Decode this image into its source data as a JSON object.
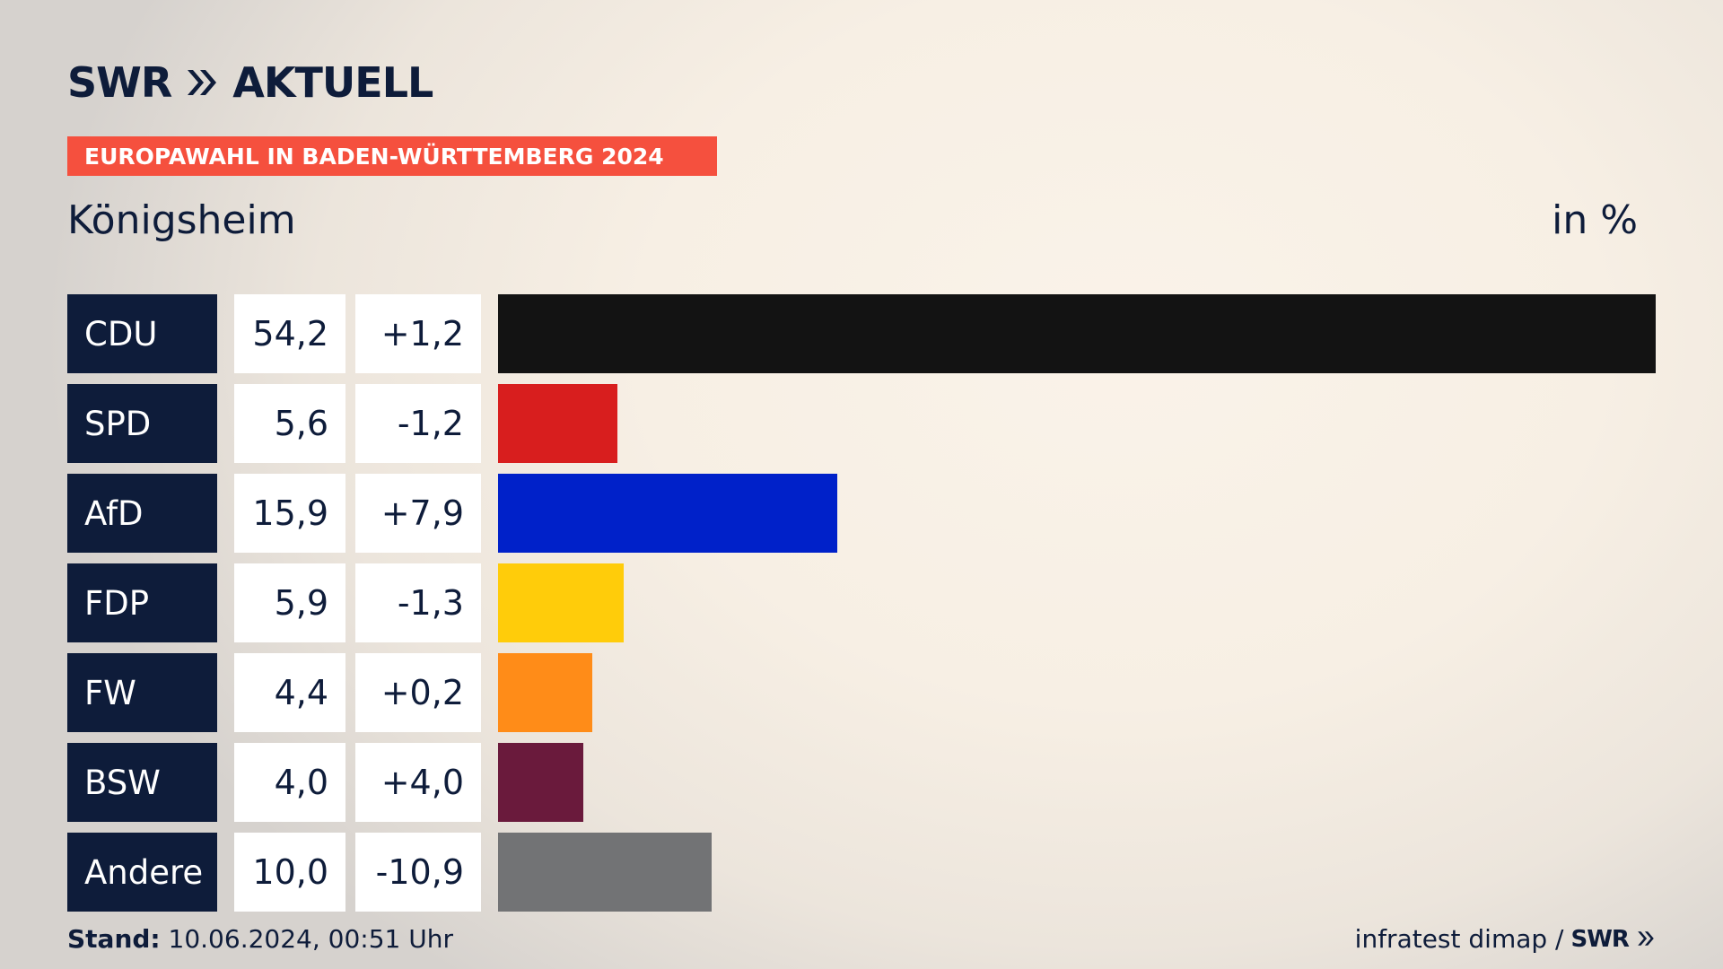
{
  "brand": {
    "name": "SWR",
    "product": "AKTUELL",
    "small_logo": "SWR"
  },
  "banner": "EUROPAWAHL IN BADEN-WÜRTTEMBERG 2024",
  "place": "Königsheim",
  "unit": "in %",
  "footer": {
    "stand_label": "Stand:",
    "stand_value": "10.06.2024, 00:51 Uhr",
    "source": "infratest dimap /"
  },
  "chart_data": {
    "type": "bar",
    "orientation": "horizontal",
    "title": "Königsheim",
    "ylabel": "in %",
    "categories": [
      "CDU",
      "SPD",
      "AfD",
      "FDP",
      "FW",
      "BSW",
      "Andere"
    ],
    "values": [
      54.2,
      5.6,
      15.9,
      5.9,
      4.4,
      4.0,
      10.0
    ],
    "value_labels": [
      "54,2",
      "5,6",
      "15,9",
      "5,9",
      "4,4",
      "4,0",
      "10,0"
    ],
    "changes": [
      1.2,
      -1.2,
      7.9,
      -1.3,
      0.2,
      4.0,
      -10.9
    ],
    "change_labels": [
      "+1,2",
      "-1,2",
      "+7,9",
      "-1,3",
      "+0,2",
      "+4,0",
      "-10,9"
    ],
    "colors": [
      "#131313",
      "#d81e1e",
      "#0021c9",
      "#ffcc0a",
      "#ff8c18",
      "#6a1a3c",
      "#727375"
    ],
    "xlim": [
      0,
      54.2
    ],
    "grid": false,
    "legend": "none"
  }
}
